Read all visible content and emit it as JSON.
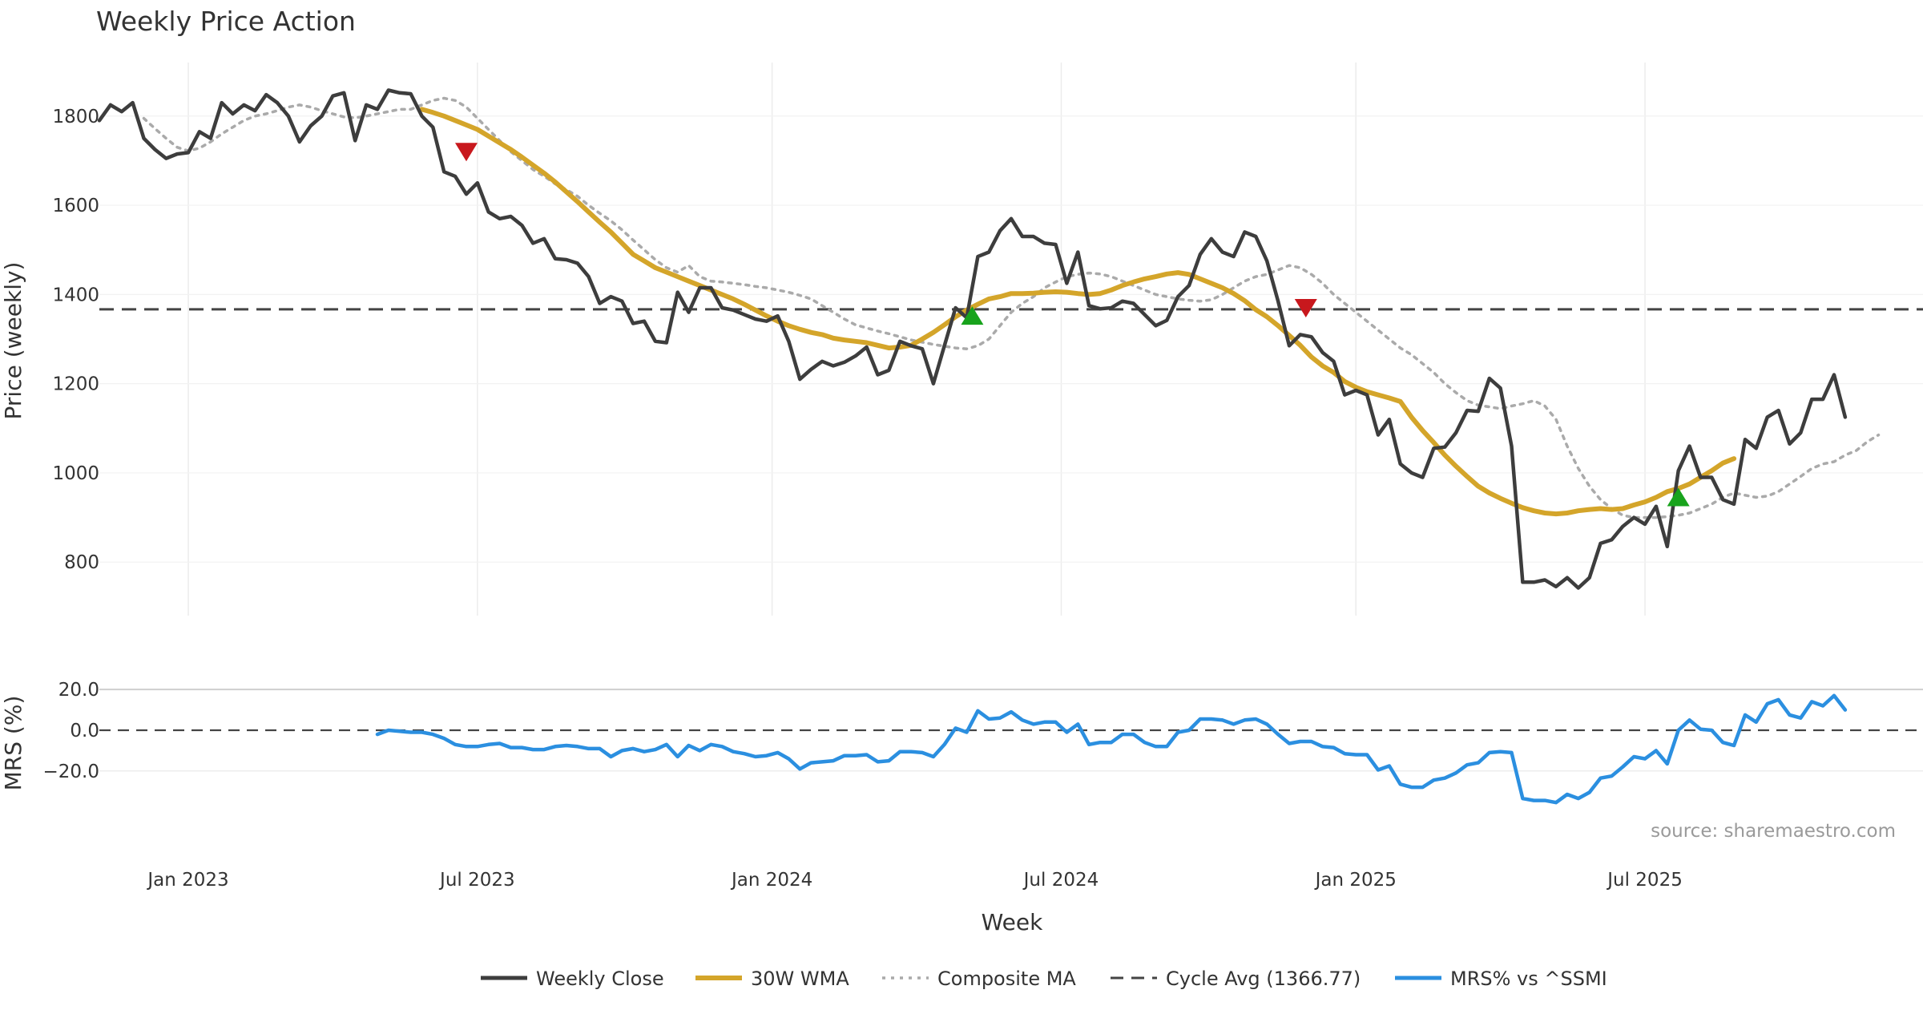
{
  "chart_data": {
    "type": "line",
    "title": "Weekly Price Action",
    "xlabel": "Week",
    "source": "source: sharemaestro.com",
    "x_ticks": [
      "Jan 2023",
      "Jul 2023",
      "Jan 2024",
      "Jul 2024",
      "Jan 2025",
      "Jul 2025"
    ],
    "x_tick_weeks": [
      6,
      32,
      58.5,
      84.5,
      111,
      137
    ],
    "x_range": [
      -2,
      162
    ],
    "price_panel": {
      "ylabel": "Price (weekly)",
      "ylim": [
        680,
        1920
      ],
      "y_ticks": [
        800,
        1000,
        1200,
        1400,
        1600,
        1800
      ],
      "cycle_avg": 1366.77
    },
    "mrs_panel": {
      "ylabel": "MRS (%)",
      "ylim": [
        -37,
        24
      ],
      "y_ticks": [
        20,
        0,
        -20
      ],
      "y_tick_labels": [
        "20.0",
        "0.0",
        "−20.0"
      ]
    },
    "series": [
      {
        "name": "Weekly Close",
        "color": "#3d3d3d",
        "start": -2,
        "values": [
          1790,
          1825,
          1810,
          1830,
          1750,
          1725,
          1705,
          1715,
          1718,
          1765,
          1750,
          1830,
          1805,
          1825,
          1812,
          1848,
          1830,
          1800,
          1742,
          1778,
          1800,
          1845,
          1852,
          1745,
          1825,
          1815,
          1858,
          1852,
          1850,
          1800,
          1775,
          1675,
          1665,
          1625,
          1650,
          1585,
          1570,
          1575,
          1555,
          1515,
          1525,
          1480,
          1478,
          1470,
          1440,
          1380,
          1395,
          1385,
          1335,
          1340,
          1295,
          1292,
          1405,
          1360,
          1415,
          1415,
          1370,
          1365,
          1355,
          1345,
          1340,
          1352,
          1295,
          1210,
          1232,
          1250,
          1240,
          1248,
          1262,
          1282,
          1220,
          1230,
          1295,
          1285,
          1278,
          1200,
          1285,
          1370,
          1348,
          1485,
          1495,
          1543,
          1570,
          1530,
          1530,
          1515,
          1512,
          1425,
          1495,
          1375,
          1368,
          1370,
          1385,
          1380,
          1355,
          1330,
          1342,
          1395,
          1420,
          1490,
          1525,
          1495,
          1485,
          1540,
          1530,
          1475,
          1385,
          1285,
          1310,
          1305,
          1270,
          1250,
          1175,
          1185,
          1175,
          1085,
          1120,
          1020,
          1000,
          990,
          1055,
          1058,
          1090,
          1140,
          1138,
          1212,
          1190,
          1060,
          755,
          755,
          760,
          745,
          765,
          742,
          765,
          842,
          850,
          880,
          900,
          885,
          925,
          835,
          1005,
          1060,
          990,
          990,
          940,
          930,
          1075,
          1055,
          1125,
          1140,
          1065,
          1090,
          1165,
          1165,
          1220,
          1125
        ]
      },
      {
        "name": "30W WMA",
        "color": "#d4a52a",
        "start": 27,
        "values": [
          1815,
          1808,
          1800,
          1790,
          1780,
          1770,
          1755,
          1740,
          1725,
          1708,
          1690,
          1672,
          1652,
          1630,
          1608,
          1585,
          1562,
          1540,
          1515,
          1490,
          1475,
          1460,
          1450,
          1440,
          1430,
          1420,
          1410,
          1400,
          1390,
          1378,
          1365,
          1352,
          1340,
          1330,
          1322,
          1315,
          1310,
          1302,
          1298,
          1295,
          1292,
          1286,
          1280,
          1282,
          1286,
          1300,
          1315,
          1332,
          1350,
          1365,
          1378,
          1390,
          1395,
          1402,
          1402,
          1403,
          1405,
          1406,
          1405,
          1402,
          1400,
          1402,
          1410,
          1420,
          1428,
          1435,
          1440,
          1446,
          1449,
          1445,
          1435,
          1425,
          1415,
          1402,
          1386,
          1366,
          1350,
          1330,
          1308,
          1286,
          1260,
          1240,
          1225,
          1205,
          1192,
          1182,
          1175,
          1168,
          1160,
          1125,
          1095,
          1068,
          1040,
          1015,
          992,
          970,
          955,
          943,
          932,
          922,
          915,
          910,
          908,
          910,
          915,
          918,
          920,
          918,
          920,
          928,
          935,
          945,
          958,
          965,
          975,
          990,
          1005,
          1022,
          1032
        ]
      },
      {
        "name": "Composite MA",
        "color": "#aaaaaa",
        "start": 2,
        "values": [
          1795,
          1772,
          1750,
          1730,
          1722,
          1728,
          1742,
          1760,
          1775,
          1790,
          1800,
          1805,
          1812,
          1820,
          1825,
          1820,
          1812,
          1805,
          1798,
          1796,
          1800,
          1805,
          1810,
          1815,
          1815,
          1825,
          1835,
          1840,
          1835,
          1820,
          1795,
          1770,
          1745,
          1720,
          1700,
          1680,
          1665,
          1648,
          1635,
          1620,
          1600,
          1582,
          1565,
          1545,
          1522,
          1500,
          1478,
          1460,
          1450,
          1465,
          1440,
          1430,
          1428,
          1425,
          1422,
          1418,
          1415,
          1410,
          1405,
          1398,
          1390,
          1375,
          1360,
          1345,
          1332,
          1325,
          1318,
          1312,
          1305,
          1298,
          1293,
          1288,
          1284,
          1280,
          1278,
          1285,
          1300,
          1330,
          1360,
          1380,
          1395,
          1415,
          1428,
          1440,
          1445,
          1448,
          1446,
          1440,
          1430,
          1420,
          1410,
          1400,
          1395,
          1390,
          1387,
          1385,
          1388,
          1400,
          1415,
          1430,
          1440,
          1445,
          1455,
          1465,
          1460,
          1445,
          1425,
          1400,
          1380,
          1360,
          1340,
          1320,
          1300,
          1280,
          1265,
          1245,
          1225,
          1200,
          1180,
          1162,
          1152,
          1148,
          1144,
          1150,
          1155,
          1162,
          1150,
          1120,
          1060,
          1010,
          970,
          940,
          920,
          905,
          900,
          900,
          900,
          902,
          905,
          910,
          920,
          930,
          945,
          955,
          950,
          945,
          948,
          958,
          975,
          992,
          1010,
          1020,
          1025,
          1040,
          1050,
          1070,
          1085
        ]
      },
      {
        "name": "Cycle Avg (1366.77)",
        "color": "#444444",
        "value": 1366.77
      },
      {
        "name": "MRS% vs ^SSMI",
        "color": "#2b8fe0",
        "start": 23,
        "values": [
          -2,
          0,
          -0.5,
          -1,
          -1,
          -2,
          -4,
          -7,
          -8,
          -8,
          -7,
          -6.5,
          -8.5,
          -8.5,
          -9.5,
          -9.5,
          -8,
          -7.5,
          -8,
          -9,
          -9,
          -13,
          -10,
          -9,
          -10.5,
          -9.5,
          -7,
          -13,
          -7.5,
          -10,
          -7,
          -8,
          -10.5,
          -11.5,
          -13,
          -12.5,
          -11,
          -14,
          -19,
          -16,
          -15.5,
          -15,
          -12.5,
          -12.5,
          -12,
          -15.5,
          -15,
          -10.5,
          -10.5,
          -11,
          -13,
          -7,
          1,
          -1,
          9.5,
          5.5,
          6,
          9,
          5,
          3,
          4,
          4,
          -1,
          3,
          -7,
          -6,
          -6,
          -2,
          -2,
          -6,
          -8,
          -8,
          -1,
          0,
          5.5,
          5.5,
          5,
          3,
          5,
          5.5,
          3,
          -2,
          -6.5,
          -5.5,
          -5.5,
          -8,
          -8.5,
          -11.5,
          -12,
          -12,
          -19.5,
          -17.5,
          -26.5,
          -28,
          -28,
          -24.5,
          -23.5,
          -21,
          -17,
          -16,
          -11,
          -10.5,
          -11,
          -33.5,
          -34.5,
          -34.5,
          -35.5,
          -31.5,
          -33.5,
          -30.5,
          -23.5,
          -22.5,
          -18,
          -13,
          -14,
          -10,
          -16.5,
          0,
          5,
          0.5,
          0,
          -6,
          -7.5,
          7.5,
          4,
          13,
          15,
          7.5,
          6,
          14,
          12,
          17,
          10
        ]
      }
    ],
    "signals": [
      {
        "type": "sell",
        "week": 31,
        "price": 1720,
        "color": "#c8181d"
      },
      {
        "type": "buy",
        "week": 76.5,
        "price": 1352,
        "color": "#18a31c"
      },
      {
        "type": "sell",
        "week": 106.5,
        "price": 1370,
        "color": "#c8181d"
      },
      {
        "type": "buy",
        "week": 140,
        "price": 945,
        "color": "#18a31c"
      }
    ]
  }
}
